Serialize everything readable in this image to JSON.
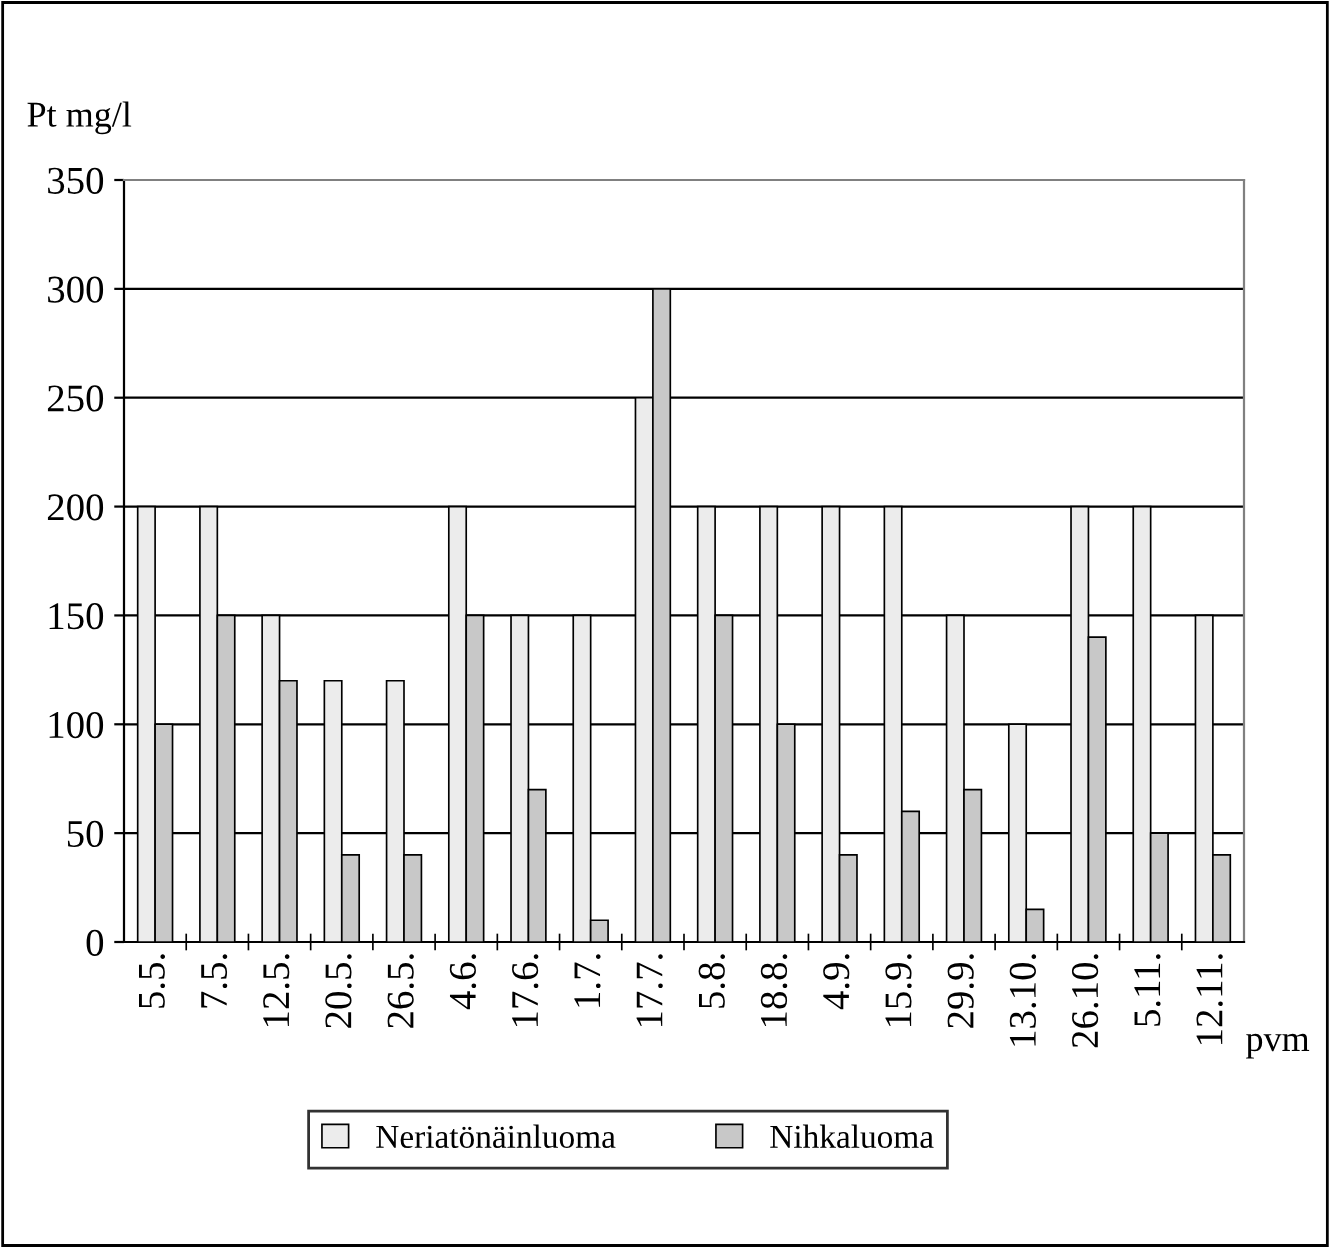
{
  "chart_data": {
    "type": "bar",
    "ylabel": "Pt mg/l",
    "xlabel": "pvm",
    "categories": [
      "5.5.",
      "7.5.",
      "12.5.",
      "20.5.",
      "26.5.",
      "4.6.",
      "17.6.",
      "1.7.",
      "17.7.",
      "5.8.",
      "18.8.",
      "4.9.",
      "15.9.",
      "29.9.",
      "13.10.",
      "26.10.",
      "5.11.",
      "12.11."
    ],
    "series": [
      {
        "name": "Neriatönäinluoma",
        "color": "#ececec",
        "values": [
          200,
          200,
          150,
          120,
          120,
          200,
          150,
          150,
          250,
          200,
          200,
          200,
          200,
          150,
          100,
          200,
          200,
          150
        ]
      },
      {
        "name": "Nihkaluoma",
        "color": "#c8c8c8",
        "values": [
          100,
          150,
          120,
          40,
          40,
          150,
          70,
          10,
          300,
          150,
          100,
          40,
          60,
          70,
          15,
          140,
          50,
          40
        ]
      }
    ],
    "ylim": [
      0,
      350
    ],
    "yticks": [
      0,
      50,
      100,
      150,
      200,
      250,
      300,
      350
    ],
    "grid": "y",
    "legend": "bottom"
  }
}
